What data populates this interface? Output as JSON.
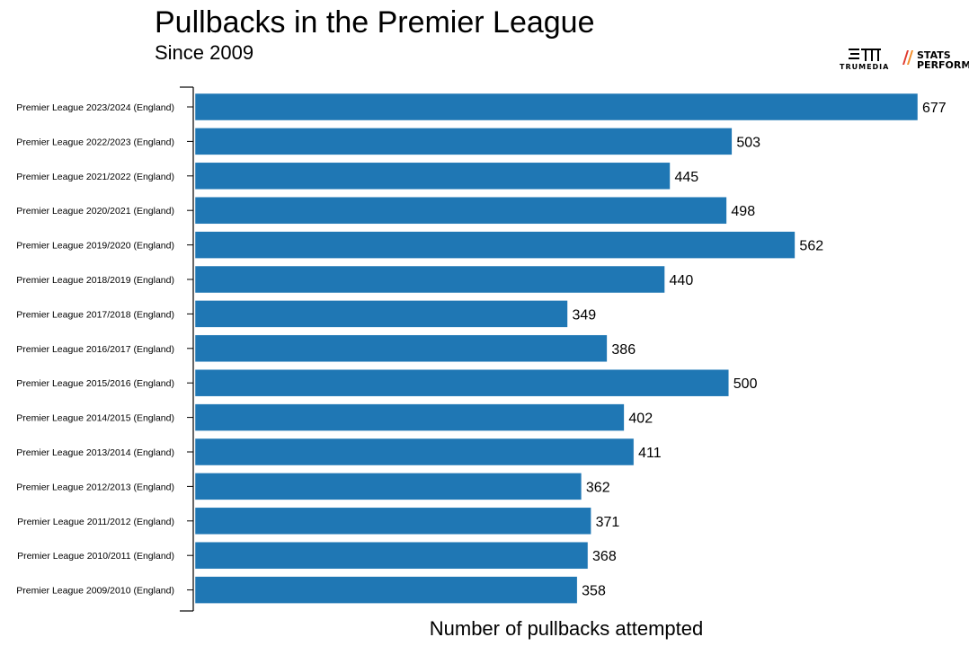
{
  "title": "Pullbacks in the Premier League",
  "subtitle": "Since 2009",
  "logos": {
    "trumedia": "TRUMEDIA",
    "stats_perform_line1": "STATS",
    "stats_perform_line2": "PERFORM"
  },
  "colors": {
    "bar": "#1f77b4",
    "axis": "#000000"
  },
  "chart_data": {
    "type": "bar",
    "orientation": "horizontal",
    "title": "Pullbacks in the Premier League",
    "subtitle": "Since 2009",
    "xlabel": "Number of pullbacks attempted",
    "ylabel": "",
    "categories": [
      "Premier League 2023/2024 (England)",
      "Premier League 2022/2023 (England)",
      "Premier League 2021/2022 (England)",
      "Premier League 2020/2021 (England)",
      "Premier League 2019/2020 (England)",
      "Premier League 2018/2019 (England)",
      "Premier League 2017/2018 (England)",
      "Premier League 2016/2017 (England)",
      "Premier League 2015/2016 (England)",
      "Premier League 2014/2015 (England)",
      "Premier League 2013/2014 (England)",
      "Premier League 2012/2013 (England)",
      "Premier League 2011/2012 (England)",
      "Premier League 2010/2011 (England)",
      "Premier League 2009/2010 (England)"
    ],
    "values": [
      677,
      503,
      445,
      498,
      562,
      440,
      349,
      386,
      500,
      402,
      411,
      362,
      371,
      368,
      358
    ],
    "xlim": [
      0,
      677
    ],
    "grid": false
  }
}
